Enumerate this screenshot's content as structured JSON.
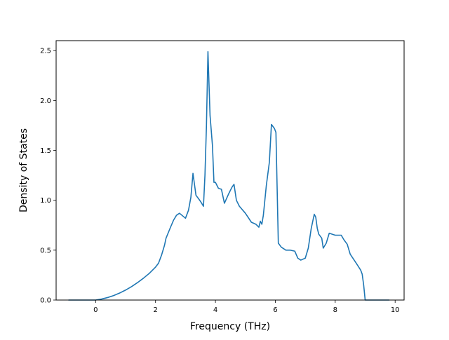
{
  "chart_data": {
    "type": "line",
    "title": "",
    "xlabel": "Frequency (THz)",
    "ylabel": "Density of States",
    "xlim": [
      -1.32,
      10.3
    ],
    "ylim": [
      0,
      2.6
    ],
    "xticks": [
      0,
      2,
      4,
      6,
      8,
      10
    ],
    "yticks": [
      0.0,
      0.5,
      1.0,
      1.5,
      2.0,
      2.5
    ],
    "xtick_labels": [
      "0",
      "2",
      "4",
      "6",
      "8",
      "10"
    ],
    "ytick_labels": [
      "0.0",
      "0.5",
      "1.0",
      "1.5",
      "2.0",
      "2.5"
    ],
    "grid": false,
    "legend": "none",
    "series": [
      {
        "color": "#1f77b4",
        "x": [
          -0.9,
          0.0,
          0.2,
          0.4,
          0.6,
          0.8,
          1.0,
          1.2,
          1.4,
          1.6,
          1.8,
          2.0,
          2.1,
          2.2,
          2.3,
          2.35,
          2.5,
          2.6,
          2.7,
          2.8,
          3.0,
          3.1,
          3.18,
          3.25,
          3.35,
          3.45,
          3.52,
          3.6,
          3.65,
          3.7,
          3.75,
          3.82,
          3.9,
          3.95,
          4.0,
          4.1,
          4.2,
          4.3,
          4.45,
          4.55,
          4.62,
          4.7,
          4.8,
          5.0,
          5.2,
          5.35,
          5.45,
          5.5,
          5.55,
          5.6,
          5.65,
          5.7,
          5.8,
          5.87,
          5.97,
          6.02,
          6.1,
          6.2,
          6.35,
          6.5,
          6.65,
          6.75,
          6.85,
          7.0,
          7.1,
          7.2,
          7.3,
          7.35,
          7.4,
          7.45,
          7.55,
          7.6,
          7.7,
          7.8,
          7.9,
          8.0,
          8.1,
          8.2,
          8.3,
          8.4,
          8.5,
          8.7,
          8.85,
          8.9,
          8.95,
          9.0,
          9.1,
          9.8
        ],
        "y": [
          0.0,
          0.0,
          0.01,
          0.025,
          0.045,
          0.07,
          0.1,
          0.135,
          0.175,
          0.22,
          0.27,
          0.33,
          0.37,
          0.45,
          0.55,
          0.62,
          0.73,
          0.8,
          0.85,
          0.87,
          0.82,
          0.9,
          1.03,
          1.27,
          1.05,
          1.01,
          0.98,
          0.94,
          1.25,
          1.75,
          2.49,
          1.85,
          1.55,
          1.18,
          1.18,
          1.12,
          1.11,
          0.97,
          1.07,
          1.13,
          1.16,
          1.0,
          0.94,
          0.87,
          0.78,
          0.76,
          0.73,
          0.79,
          0.76,
          0.85,
          1.0,
          1.15,
          1.38,
          1.76,
          1.72,
          1.68,
          0.57,
          0.53,
          0.5,
          0.5,
          0.49,
          0.42,
          0.4,
          0.42,
          0.52,
          0.72,
          0.86,
          0.83,
          0.72,
          0.66,
          0.62,
          0.52,
          0.57,
          0.67,
          0.66,
          0.65,
          0.65,
          0.65,
          0.6,
          0.56,
          0.46,
          0.37,
          0.3,
          0.26,
          0.15,
          0.0,
          0.0,
          0.0
        ]
      }
    ]
  }
}
